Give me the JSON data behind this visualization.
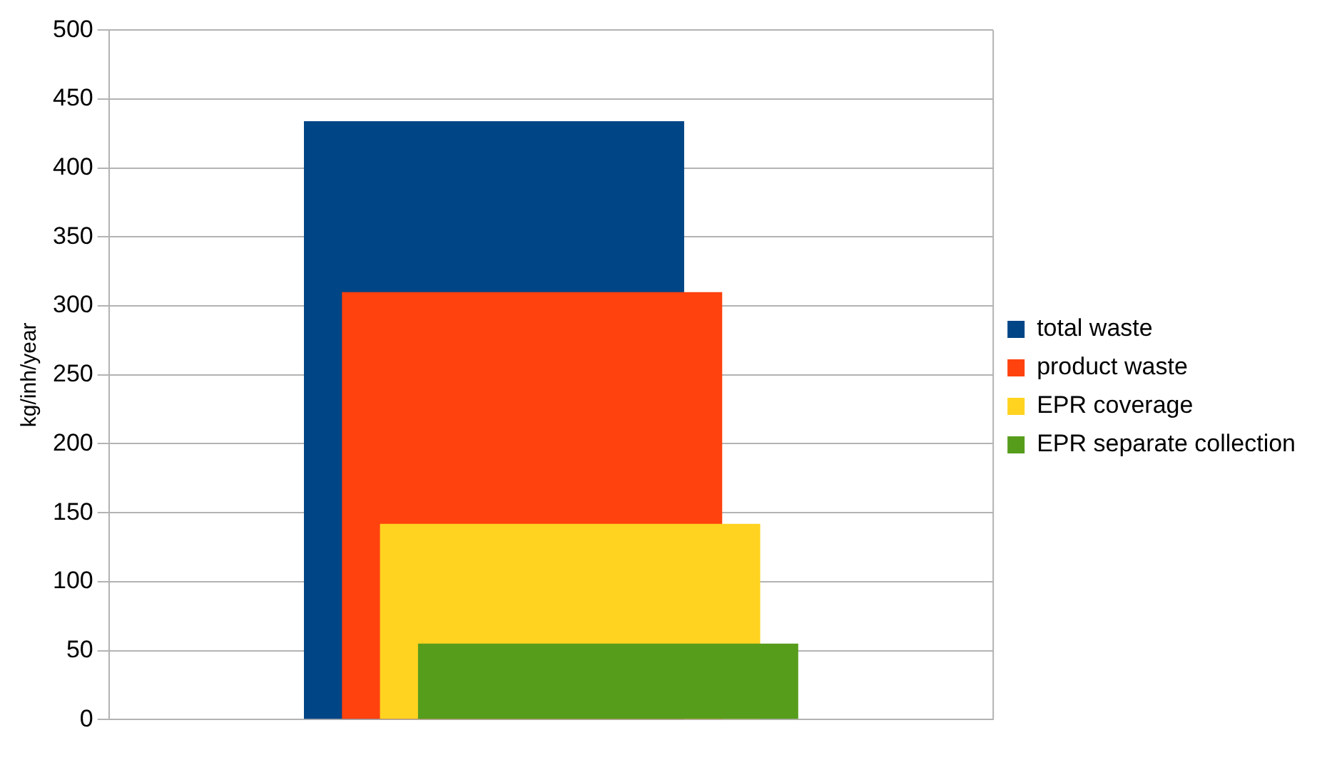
{
  "chart_data": {
    "type": "bar",
    "ylabel": "kg/inh/year",
    "categories": [
      null
    ],
    "series": [
      {
        "name": "total waste",
        "color": "#004586",
        "values": [
          434
        ]
      },
      {
        "name": "product waste",
        "color": "#ff420e",
        "values": [
          310
        ]
      },
      {
        "name": "EPR coverage",
        "color": "#ffd320",
        "values": [
          142
        ]
      },
      {
        "name": "EPR separate collection",
        "color": "#579d1c",
        "values": [
          55
        ]
      }
    ],
    "ylim": [
      0,
      500
    ],
    "yticks": [
      0,
      50,
      100,
      150,
      200,
      250,
      300,
      350,
      400,
      450,
      500
    ],
    "grid": "y",
    "legend": "right"
  }
}
